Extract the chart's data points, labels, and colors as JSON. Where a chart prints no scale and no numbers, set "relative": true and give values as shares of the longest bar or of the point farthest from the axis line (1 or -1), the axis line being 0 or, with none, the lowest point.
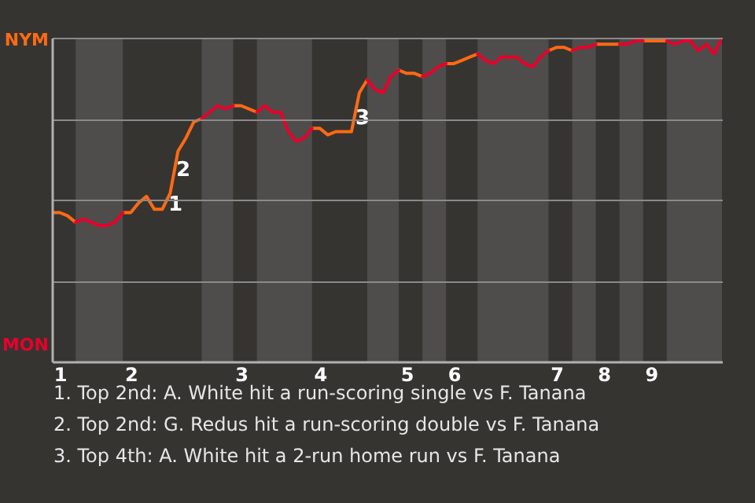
{
  "chart_data": {
    "type": "line",
    "relative": true,
    "categories": [
      null,
      "1",
      null,
      null,
      null,
      null,
      null,
      null,
      null,
      null,
      "2",
      null,
      null,
      null,
      null,
      null,
      null,
      null,
      null,
      null,
      null,
      null,
      null,
      null,
      "3",
      null,
      null,
      null,
      null,
      null,
      null,
      null,
      null,
      null,
      "4",
      null,
      null,
      null,
      null,
      null,
      null,
      null,
      null,
      null,
      null,
      "5",
      null,
      null,
      null,
      null,
      null,
      "6",
      null,
      null,
      null,
      null,
      null,
      null,
      null,
      null,
      null,
      null,
      null,
      null,
      "7",
      null,
      null,
      null,
      null,
      null,
      "8",
      null,
      null,
      null,
      null,
      null,
      "9",
      null,
      null,
      null,
      null,
      null,
      null,
      null,
      null,
      null
    ],
    "grid": "y",
    "line_style": "solid",
    "series": [
      {
        "color": "#ff6a13",
        "values": [
          0.46,
          0.46,
          0.45,
          0.43,
          null,
          null,
          null,
          null,
          null,
          0.46,
          0.46,
          0.49,
          0.51,
          0.47,
          0.47,
          0.52,
          0.65,
          0.69,
          0.74,
          0.75,
          null,
          null,
          null,
          0.79,
          0.79,
          0.78,
          0.77,
          null,
          null,
          null,
          null,
          null,
          null,
          0.72,
          0.72,
          0.7,
          0.71,
          0.71,
          0.71,
          0.83,
          0.87,
          null,
          null,
          null,
          0.9,
          0.89,
          0.89,
          0.88,
          null,
          null,
          0.92,
          0.92,
          0.93,
          0.94,
          0.95,
          null,
          null,
          null,
          null,
          null,
          null,
          null,
          null,
          0.96,
          0.97,
          0.97,
          0.96,
          null,
          null,
          0.98,
          0.98,
          0.98,
          0.98,
          null,
          null,
          0.99,
          0.99,
          0.99,
          0.99,
          null,
          null,
          null,
          null,
          null,
          null,
          null
        ]
      },
      {
        "color": "#e8002b",
        "values": [
          null,
          null,
          null,
          0.43,
          0.44,
          0.43,
          0.42,
          0.42,
          0.43,
          0.46,
          null,
          null,
          null,
          null,
          null,
          null,
          null,
          null,
          null,
          0.75,
          0.77,
          0.79,
          0.78,
          0.79,
          null,
          null,
          0.77,
          0.79,
          0.77,
          0.77,
          0.71,
          0.68,
          0.69,
          0.72,
          null,
          null,
          null,
          null,
          null,
          null,
          0.87,
          0.84,
          0.83,
          0.88,
          0.9,
          null,
          null,
          0.88,
          0.89,
          0.91,
          0.92,
          null,
          null,
          null,
          0.95,
          0.93,
          0.92,
          0.94,
          0.94,
          0.94,
          0.92,
          0.91,
          0.94,
          0.96,
          null,
          null,
          0.96,
          0.97,
          0.97,
          0.98,
          null,
          null,
          0.98,
          0.98,
          0.99,
          0.99,
          null,
          null,
          0.99,
          0.98,
          0.99,
          0.99,
          0.96,
          0.98,
          0.95,
          1
        ]
      }
    ],
    "annotations": [
      "NYM",
      "MON",
      "1",
      "2",
      "3",
      "1. Top 2nd: A. White hit a run-scoring single vs F. Tanana",
      "2. Top 2nd: G. Redus hit a run-scoring double vs F. Tanana",
      "3. Top 4th: A. White hit a 2-run home run vs F. Tanana"
    ]
  }
}
